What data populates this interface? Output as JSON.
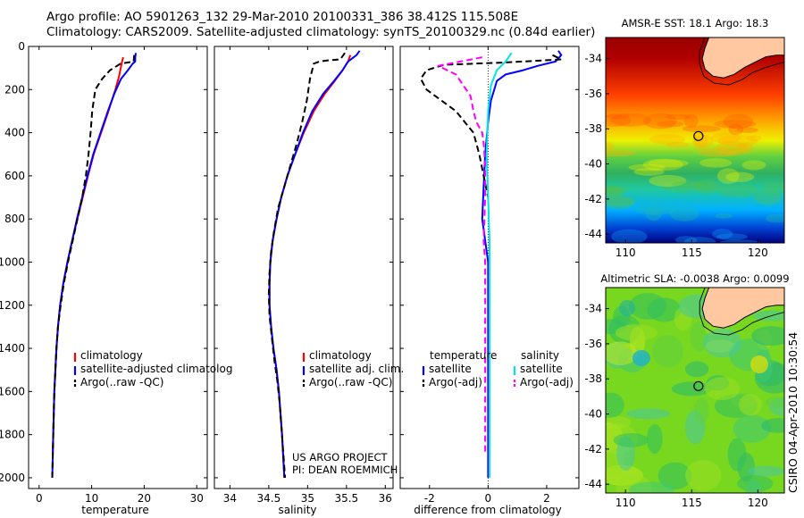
{
  "header": {
    "line1": "Argo profile: AO 5901263_132 29-Mar-2010 20100331_386 38.412S 115.508E",
    "line2": "Climatology: CARS2009. Satellite-adjusted climatology: synTS_20100329.nc (0.84d earlier)"
  },
  "side_label": "CSIRO 04-Apr-2010 10:30:54",
  "colors": {
    "climatology": "#ff0000",
    "satellite": "#0000ff",
    "argo": "#000000",
    "temp_diff_argo": "#000000",
    "sal_satellite": "#00e5e5",
    "sal_argo": "#ff00ff",
    "land": "#ffc8a0"
  },
  "chart_data": [
    {
      "type": "line",
      "id": "temperature",
      "xlabel": "temperature",
      "ylabel": "",
      "xlim": [
        -2,
        32
      ],
      "ylim": [
        2050,
        0
      ],
      "xticks": [
        0,
        10,
        20,
        30
      ],
      "yticks": [
        0,
        200,
        400,
        600,
        800,
        1000,
        1200,
        1400,
        1600,
        1800,
        2000
      ],
      "legend": [
        "climatology",
        "satellite-adjusted climatolog",
        "Argo(..raw -QC)"
      ],
      "series": [
        {
          "name": "climatology",
          "color": "#ff0000",
          "style": "solid",
          "points": [
            [
              16,
              50
            ],
            [
              15.7,
              80
            ],
            [
              15.2,
              140
            ],
            [
              14.5,
              200
            ],
            [
              13.2,
              300
            ],
            [
              11.8,
              400
            ],
            [
              10.4,
              500
            ],
            [
              9.3,
              600
            ],
            [
              8.3,
              700
            ],
            [
              7.3,
              800
            ],
            [
              6.3,
              900
            ],
            [
              5.4,
              1000
            ],
            [
              4.6,
              1100
            ],
            [
              4,
              1200
            ],
            [
              3.6,
              1300
            ],
            [
              3.3,
              1400
            ],
            [
              3.1,
              1500
            ],
            [
              2.9,
              1600
            ],
            [
              2.7,
              1800
            ],
            [
              2.6,
              1880
            ]
          ]
        },
        {
          "name": "satellite-adjusted climatolog",
          "color": "#0000ff",
          "style": "solid",
          "points": [
            [
              18.4,
              30
            ],
            [
              18.3,
              50
            ],
            [
              18.3,
              70
            ],
            [
              17.8,
              80
            ],
            [
              16.9,
              110
            ],
            [
              15.6,
              150
            ],
            [
              14.3,
              220
            ],
            [
              13.1,
              300
            ],
            [
              11.7,
              400
            ],
            [
              10.3,
              500
            ],
            [
              9.2,
              600
            ],
            [
              8.2,
              700
            ],
            [
              7.2,
              800
            ],
            [
              6.3,
              900
            ],
            [
              5.4,
              1000
            ],
            [
              4.6,
              1100
            ],
            [
              4,
              1200
            ],
            [
              3.6,
              1300
            ],
            [
              3.3,
              1400
            ],
            [
              3.1,
              1500
            ],
            [
              2.9,
              1600
            ],
            [
              2.7,
              1800
            ],
            [
              2.5,
              2000
            ]
          ]
        },
        {
          "name": "Argo(..raw -QC)",
          "color": "#000000",
          "style": "dash",
          "points": [
            [
              18.1,
              40
            ],
            [
              18,
              70
            ],
            [
              15.5,
              80
            ],
            [
              13.5,
              110
            ],
            [
              12,
              150
            ],
            [
              10.7,
              200
            ],
            [
              10.1,
              300
            ],
            [
              9.8,
              400
            ],
            [
              9.4,
              500
            ],
            [
              8.9,
              600
            ],
            [
              8.2,
              700
            ],
            [
              7.3,
              800
            ],
            [
              6.4,
              900
            ],
            [
              5.5,
              1000
            ],
            [
              4.7,
              1100
            ],
            [
              4.1,
              1200
            ],
            [
              3.6,
              1300
            ],
            [
              3.3,
              1400
            ],
            [
              3.1,
              1500
            ],
            [
              2.9,
              1600
            ],
            [
              2.7,
              1800
            ],
            [
              2.5,
              2000
            ]
          ]
        }
      ]
    },
    {
      "type": "line",
      "id": "salinity",
      "xlabel": "salinity",
      "ylabel": "",
      "xlim": [
        33.8,
        36.1
      ],
      "ylim": [
        2050,
        0
      ],
      "xticks": [
        34,
        34.5,
        35,
        35.5,
        36
      ],
      "legend": [
        "climatology",
        "satellite adj. clim.",
        "Argo(..raw -QC)"
      ],
      "annotation": [
        "US ARGO PROJECT",
        "PI: DEAN ROEMMICH"
      ],
      "series": [
        {
          "name": "climatology",
          "color": "#ff0000",
          "style": "solid",
          "points": [
            [
              35.55,
              40
            ],
            [
              35.52,
              70
            ],
            [
              35.45,
              110
            ],
            [
              35.35,
              160
            ],
            [
              35.22,
              220
            ],
            [
              35.08,
              300
            ],
            [
              34.95,
              400
            ],
            [
              34.84,
              500
            ],
            [
              34.74,
              600
            ],
            [
              34.66,
              700
            ],
            [
              34.6,
              800
            ],
            [
              34.55,
              900
            ],
            [
              34.52,
              1000
            ],
            [
              34.51,
              1100
            ],
            [
              34.51,
              1200
            ],
            [
              34.53,
              1300
            ],
            [
              34.56,
              1400
            ],
            [
              34.6,
              1500
            ],
            [
              34.63,
              1600
            ],
            [
              34.67,
              1800
            ],
            [
              34.7,
              2000
            ]
          ]
        },
        {
          "name": "satellite adj. clim.",
          "color": "#0000ff",
          "style": "solid",
          "points": [
            [
              35.67,
              20
            ],
            [
              35.63,
              40
            ],
            [
              35.52,
              70
            ],
            [
              35.45,
              110
            ],
            [
              35.34,
              160
            ],
            [
              35.2,
              220
            ],
            [
              35.06,
              300
            ],
            [
              34.94,
              400
            ],
            [
              34.84,
              500
            ],
            [
              34.74,
              600
            ],
            [
              34.66,
              700
            ],
            [
              34.6,
              800
            ],
            [
              34.55,
              900
            ],
            [
              34.52,
              1000
            ],
            [
              34.51,
              1100
            ],
            [
              34.51,
              1200
            ],
            [
              34.53,
              1300
            ],
            [
              34.56,
              1400
            ],
            [
              34.6,
              1500
            ],
            [
              34.63,
              1600
            ],
            [
              34.67,
              1800
            ],
            [
              34.7,
              2000
            ]
          ]
        },
        {
          "name": "Argo(..raw -QC)",
          "color": "#000000",
          "style": "dash",
          "points": [
            [
              35.48,
              30
            ],
            [
              35.42,
              60
            ],
            [
              35.25,
              65
            ],
            [
              35.15,
              70
            ],
            [
              35.08,
              80
            ],
            [
              35.03,
              150
            ],
            [
              34.99,
              250
            ],
            [
              34.93,
              350
            ],
            [
              34.86,
              450
            ],
            [
              34.78,
              550
            ],
            [
              34.7,
              650
            ],
            [
              34.62,
              750
            ],
            [
              34.57,
              850
            ],
            [
              34.53,
              950
            ],
            [
              34.51,
              1050
            ],
            [
              34.5,
              1150
            ],
            [
              34.51,
              1250
            ],
            [
              34.54,
              1350
            ],
            [
              34.57,
              1450
            ],
            [
              34.61,
              1550
            ],
            [
              34.64,
              1650
            ],
            [
              34.68,
              1850
            ],
            [
              34.71,
              2000
            ]
          ]
        }
      ]
    },
    {
      "type": "line",
      "id": "difference",
      "xlabel": "difference from climatology",
      "ylabel": "",
      "xlim": [
        -3,
        3.1
      ],
      "ylim": [
        2050,
        0
      ],
      "xticks": [
        -2,
        0,
        2
      ],
      "legend_headers": [
        "temperature",
        "salinity"
      ],
      "legend": [
        "satellite",
        "Argo(-adj)",
        "satellite",
        "Argo(-adj)"
      ],
      "series": [
        {
          "name": "satellite",
          "group": "temperature",
          "color": "#0000ff",
          "style": "solid",
          "points": [
            [
              2.4,
              20
            ],
            [
              2.5,
              40
            ],
            [
              2.3,
              70
            ],
            [
              1.7,
              90
            ],
            [
              1.2,
              110
            ],
            [
              0.6,
              130
            ],
            [
              0.3,
              160
            ],
            [
              0.1,
              250
            ],
            [
              0,
              350
            ],
            [
              -0.1,
              500
            ],
            [
              -0.15,
              650
            ],
            [
              -0.2,
              800
            ],
            [
              -0.1,
              900
            ],
            [
              0,
              1000
            ],
            [
              0,
              1200
            ],
            [
              0,
              1500
            ],
            [
              0,
              2000
            ]
          ]
        },
        {
          "name": "Argo(-adj)",
          "group": "temperature",
          "color": "#000000",
          "style": "dash",
          "points": [
            [
              2.2,
              40
            ],
            [
              2.5,
              60
            ],
            [
              0.5,
              75
            ],
            [
              -1.5,
              85
            ],
            [
              -2.1,
              110
            ],
            [
              -2.3,
              150
            ],
            [
              -2.1,
              200
            ],
            [
              -1.6,
              250
            ],
            [
              -1.1,
              300
            ],
            [
              -0.8,
              350
            ],
            [
              -0.5,
              400
            ],
            [
              -0.3,
              500
            ],
            [
              -0.15,
              600
            ],
            [
              0,
              700
            ]
          ]
        },
        {
          "name": "satellite",
          "group": "salinity",
          "color": "#00e5e5",
          "style": "solid",
          "points": [
            [
              0.8,
              30
            ],
            [
              0.6,
              70
            ],
            [
              0.3,
              110
            ],
            [
              0.1,
              180
            ],
            [
              0,
              300
            ],
            [
              -0.05,
              500
            ],
            [
              0,
              700
            ],
            [
              0.05,
              900
            ],
            [
              0.05,
              1100
            ],
            [
              0.05,
              1400
            ],
            [
              0.05,
              1700
            ],
            [
              0.05,
              2000
            ]
          ]
        },
        {
          "name": "Argo(-adj)",
          "group": "salinity",
          "color": "#ff00ff",
          "style": "dash",
          "points": [
            [
              -0.2,
              50
            ],
            [
              -1.7,
              90
            ],
            [
              -1.1,
              130
            ],
            [
              -0.9,
              170
            ],
            [
              -0.6,
              230
            ],
            [
              -0.5,
              300
            ],
            [
              -0.4,
              350
            ],
            [
              -0.2,
              400
            ],
            [
              -0.15,
              450
            ],
            [
              -0.1,
              550
            ],
            [
              -0.1,
              700
            ],
            [
              -0.15,
              900
            ],
            [
              -0.1,
              1000
            ],
            [
              -0.1,
              1300
            ],
            [
              -0.1,
              1600
            ],
            [
              -0.1,
              1880
            ]
          ]
        }
      ]
    },
    {
      "type": "heatmap",
      "id": "sst_map",
      "title": "AMSR-E SST: 18.1 Argo: 18.3",
      "xlim": [
        108.5,
        122
      ],
      "ylim": [
        -44.5,
        -32.8
      ],
      "xticks": [
        110,
        115,
        120
      ],
      "yticks": [
        -34,
        -36,
        -38,
        -40,
        -42,
        -44
      ],
      "colormap": "jet",
      "marker": {
        "lon": 115.508,
        "lat": -38.412
      }
    },
    {
      "type": "heatmap",
      "id": "sla_map",
      "title": "Altimetric SLA: -0.0038 Argo: 0.0099",
      "xlim": [
        108.5,
        122
      ],
      "ylim": [
        -44.5,
        -32.8
      ],
      "xticks": [
        110,
        115,
        120
      ],
      "yticks": [
        -34,
        -36,
        -38,
        -40,
        -42,
        -44
      ],
      "colormap": "jet",
      "marker": {
        "lon": 115.508,
        "lat": -38.412
      }
    }
  ]
}
